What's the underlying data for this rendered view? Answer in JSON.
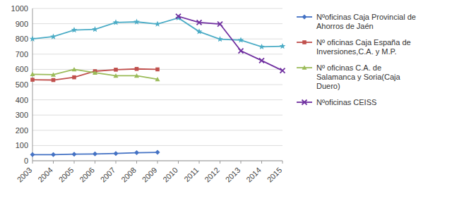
{
  "chart_data": {
    "type": "line",
    "x": [
      2003,
      2004,
      2005,
      2006,
      2007,
      2008,
      2009,
      2010,
      2011,
      2012,
      2013,
      2014,
      2015
    ],
    "series": [
      {
        "color": "#4BACC6",
        "marker": "star",
        "values": [
          800,
          815,
          858,
          863,
          908,
          912,
          898,
          938,
          848,
          798,
          792,
          748,
          752
        ]
      },
      {
        "name": "Nºoficinas Caja Provincial de\nAhorros de Jaén",
        "color": "#4472C4",
        "marker": "diamond",
        "values": [
          40,
          40,
          43,
          45,
          48,
          53,
          55,
          null,
          null,
          null,
          null,
          null,
          null
        ]
      },
      {
        "name": "Nº oficinas Caja España de\nInversiones,C.A. y M.P.",
        "color": "#C0504D",
        "marker": "square",
        "values": [
          532,
          530,
          548,
          588,
          598,
          603,
          600,
          null,
          null,
          null,
          null,
          null,
          null
        ]
      },
      {
        "name": "Nº oficinas C.A. de\nSalamanca y Soria(Caja\nDuero)",
        "color": "#9BBB59",
        "marker": "triangle",
        "values": [
          568,
          565,
          600,
          578,
          558,
          558,
          535,
          null,
          null,
          null,
          null,
          null,
          null
        ]
      },
      {
        "name": "Nºoficinas CEISS",
        "color": "#7030A0",
        "marker": "x",
        "values": [
          null,
          null,
          null,
          null,
          null,
          null,
          null,
          948,
          908,
          898,
          722,
          658,
          592
        ]
      }
    ],
    "xlim": [
      2003,
      2015
    ],
    "xticks": [
      2003,
      2004,
      2005,
      2006,
      2007,
      2008,
      2009,
      2010,
      2011,
      2012,
      2013,
      2014,
      2015
    ],
    "ylim": [
      0,
      1000
    ],
    "yticks": [
      0,
      100,
      200,
      300,
      400,
      500,
      600,
      700,
      800,
      900,
      1000
    ],
    "grid": true,
    "legend": "right"
  }
}
